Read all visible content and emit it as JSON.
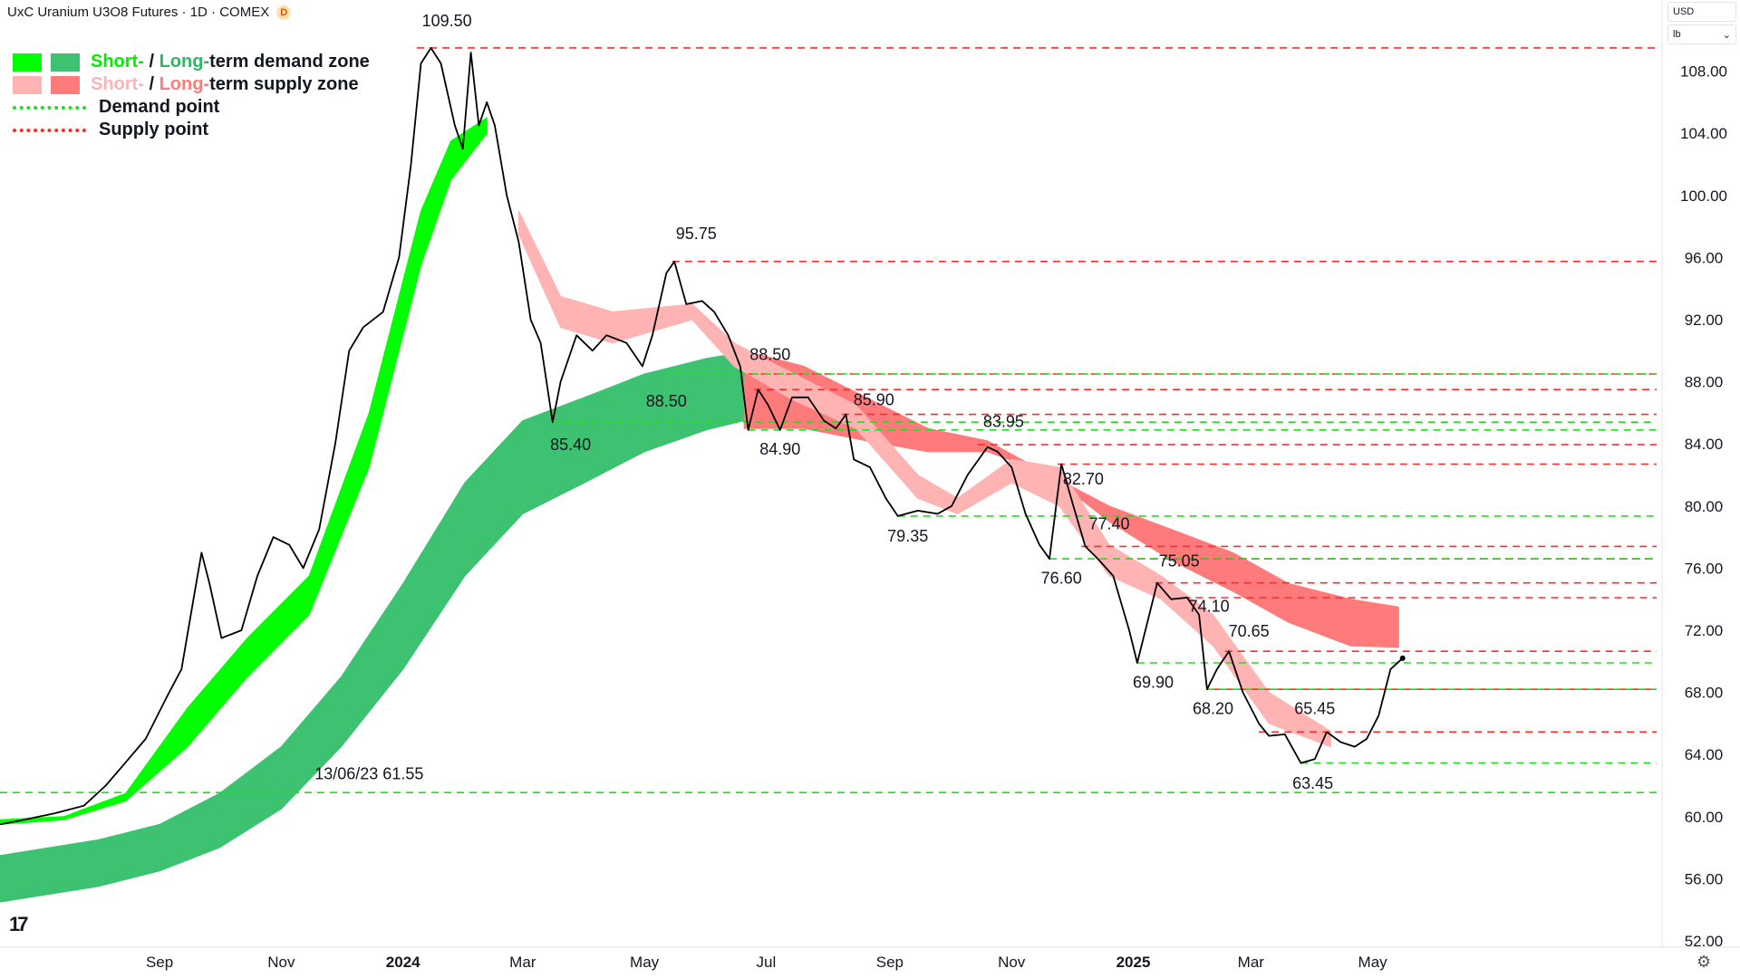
{
  "header": {
    "title": "UxC Uranium U3O8 Futures · 1D · COMEX",
    "badge": "D"
  },
  "price_scale": {
    "currency": "USD",
    "unit": "lb"
  },
  "legend": {
    "demand_zone": {
      "short": "Short-",
      "sep": " / ",
      "long": "Long-",
      "rest": "term demand zone"
    },
    "supply_zone": {
      "short": "Short-",
      "sep": " / ",
      "long": "Long-",
      "rest": "term supply zone"
    },
    "demand_point": "Demand point",
    "supply_point": "Supply point"
  },
  "colors": {
    "price_line": "#000000",
    "short_demand": "#00ff00",
    "long_demand": "#3cc270",
    "short_supply": "#ffb3b3",
    "long_supply": "#ff7b7b",
    "transition": "#f28500",
    "demand_point": "#22dd22",
    "supply_point": "#ff2a2a"
  },
  "chart_data": {
    "type": "line",
    "title": "UxC Uranium U3O8 Futures · 1D · COMEX",
    "y_range": [
      52,
      110
    ],
    "y_ticks": [
      {
        "value": 108,
        "label": "108.00"
      },
      {
        "value": 104,
        "label": "104.00"
      },
      {
        "value": 100,
        "label": "100.00"
      },
      {
        "value": 96,
        "label": "96.00"
      },
      {
        "value": 92,
        "label": "92.00"
      },
      {
        "value": 88,
        "label": "88.00"
      },
      {
        "value": 84,
        "label": "84.00"
      },
      {
        "value": 80,
        "label": "80.00"
      },
      {
        "value": 76,
        "label": "76.00"
      },
      {
        "value": 72,
        "label": "72.00"
      },
      {
        "value": 68,
        "label": "68.00"
      },
      {
        "value": 64,
        "label": "64.00"
      },
      {
        "value": 60,
        "label": "60.00"
      },
      {
        "value": 56,
        "label": "56.00"
      },
      {
        "value": 52,
        "label": "52.00"
      }
    ],
    "x_ticks": [
      {
        "date": "2023-09-01",
        "label": "Sep",
        "bold": false
      },
      {
        "date": "2023-11-01",
        "label": "Nov",
        "bold": false
      },
      {
        "date": "2024-01-01",
        "label": "2024",
        "bold": true
      },
      {
        "date": "2024-03-01",
        "label": "Mar",
        "bold": false
      },
      {
        "date": "2024-05-01",
        "label": "May",
        "bold": false
      },
      {
        "date": "2024-07-01",
        "label": "Jul",
        "bold": false
      },
      {
        "date": "2024-09-01",
        "label": "Sep",
        "bold": false
      },
      {
        "date": "2024-11-01",
        "label": "Nov",
        "bold": false
      },
      {
        "date": "2025-01-01",
        "label": "2025",
        "bold": true
      },
      {
        "date": "2025-03-01",
        "label": "Mar",
        "bold": false
      },
      {
        "date": "2025-05-01",
        "label": "May",
        "bold": false
      }
    ],
    "price": [
      [
        "2023-06-13",
        59.5
      ],
      [
        "2023-06-25",
        59.8
      ],
      [
        "2023-07-10",
        60.2
      ],
      [
        "2023-07-25",
        60.7
      ],
      [
        "2023-08-05",
        62.0
      ],
      [
        "2023-08-15",
        63.5
      ],
      [
        "2023-08-25",
        65.0
      ],
      [
        "2023-09-05",
        67.8
      ],
      [
        "2023-09-12",
        69.5
      ],
      [
        "2023-09-18",
        74.0
      ],
      [
        "2023-09-22",
        77.0
      ],
      [
        "2023-09-26",
        75.0
      ],
      [
        "2023-10-02",
        71.5
      ],
      [
        "2023-10-12",
        72.0
      ],
      [
        "2023-10-20",
        75.5
      ],
      [
        "2023-10-28",
        78.0
      ],
      [
        "2023-11-05",
        77.5
      ],
      [
        "2023-11-12",
        76.0
      ],
      [
        "2023-11-20",
        78.5
      ],
      [
        "2023-11-28",
        84.0
      ],
      [
        "2023-12-05",
        90.0
      ],
      [
        "2023-12-12",
        91.5
      ],
      [
        "2023-12-22",
        92.5
      ],
      [
        "2023-12-30",
        96.0
      ],
      [
        "2024-01-05",
        102.0
      ],
      [
        "2024-01-10",
        108.5
      ],
      [
        "2024-01-15",
        109.5
      ],
      [
        "2024-01-20",
        108.5
      ],
      [
        "2024-01-27",
        104.5
      ],
      [
        "2024-01-31",
        103.0
      ],
      [
        "2024-02-04",
        109.2
      ],
      [
        "2024-02-08",
        104.5
      ],
      [
        "2024-02-12",
        106.0
      ],
      [
        "2024-02-16",
        104.5
      ],
      [
        "2024-02-22",
        100.0
      ],
      [
        "2024-02-28",
        97.0
      ],
      [
        "2024-03-05",
        92.0
      ],
      [
        "2024-03-10",
        90.5
      ],
      [
        "2024-03-16",
        85.4
      ],
      [
        "2024-03-20",
        88.0
      ],
      [
        "2024-03-28",
        91.0
      ],
      [
        "2024-04-05",
        90.0
      ],
      [
        "2024-04-12",
        91.0
      ],
      [
        "2024-04-22",
        90.5
      ],
      [
        "2024-04-30",
        89.0
      ],
      [
        "2024-05-05",
        91.0
      ],
      [
        "2024-05-12",
        95.0
      ],
      [
        "2024-05-16",
        95.75
      ],
      [
        "2024-05-22",
        93.0
      ],
      [
        "2024-05-30",
        93.2
      ],
      [
        "2024-06-05",
        92.5
      ],
      [
        "2024-06-12",
        91.0
      ],
      [
        "2024-06-18",
        89.0
      ],
      [
        "2024-06-22",
        84.9
      ],
      [
        "2024-06-27",
        87.5
      ],
      [
        "2024-07-02",
        86.5
      ],
      [
        "2024-07-08",
        84.9
      ],
      [
        "2024-07-14",
        87.0
      ],
      [
        "2024-07-22",
        87.0
      ],
      [
        "2024-07-30",
        85.5
      ],
      [
        "2024-08-05",
        85.0
      ],
      [
        "2024-08-10",
        85.9
      ],
      [
        "2024-08-14",
        83.0
      ],
      [
        "2024-08-22",
        82.5
      ],
      [
        "2024-08-30",
        80.5
      ],
      [
        "2024-09-05",
        79.35
      ],
      [
        "2024-09-15",
        79.7
      ],
      [
        "2024-09-25",
        79.5
      ],
      [
        "2024-10-02",
        80.0
      ],
      [
        "2024-10-10",
        82.0
      ],
      [
        "2024-10-20",
        83.8
      ],
      [
        "2024-10-25",
        83.5
      ],
      [
        "2024-11-01",
        82.5
      ],
      [
        "2024-11-08",
        79.5
      ],
      [
        "2024-11-15",
        77.5
      ],
      [
        "2024-11-20",
        76.6
      ],
      [
        "2024-11-26",
        82.7
      ],
      [
        "2024-12-02",
        80.0
      ],
      [
        "2024-12-08",
        77.4
      ],
      [
        "2024-12-15",
        76.5
      ],
      [
        "2024-12-22",
        75.5
      ],
      [
        "2024-12-30",
        72.0
      ],
      [
        "2025-01-03",
        69.9
      ],
      [
        "2025-01-10",
        73.5
      ],
      [
        "2025-01-13",
        75.05
      ],
      [
        "2025-01-20",
        74.0
      ],
      [
        "2025-01-28",
        74.1
      ],
      [
        "2025-02-03",
        73.0
      ],
      [
        "2025-02-07",
        68.2
      ],
      [
        "2025-02-12",
        69.5
      ],
      [
        "2025-02-18",
        70.65
      ],
      [
        "2025-02-25",
        68.0
      ],
      [
        "2025-03-05",
        66.0
      ],
      [
        "2025-03-10",
        65.2
      ],
      [
        "2025-03-18",
        65.3
      ],
      [
        "2025-03-26",
        63.45
      ],
      [
        "2025-04-02",
        63.7
      ],
      [
        "2025-04-08",
        65.45
      ],
      [
        "2025-04-15",
        64.8
      ],
      [
        "2025-04-22",
        64.5
      ],
      [
        "2025-04-28",
        65.0
      ],
      [
        "2025-05-04",
        66.5
      ],
      [
        "2025-05-10",
        69.5
      ],
      [
        "2025-05-16",
        70.2
      ]
    ],
    "zones": {
      "short_demand": [
        [
          [
            "2023-06-13",
            59.8
          ],
          [
            "2023-07-15",
            60.0
          ],
          [
            "2023-08-15",
            61.5
          ],
          [
            "2023-09-15",
            67.0
          ],
          [
            "2023-10-15",
            71.5
          ],
          [
            "2023-11-15",
            75.5
          ],
          [
            "2023-12-15",
            86.0
          ],
          [
            "2024-01-10",
            99.0
          ],
          [
            "2024-01-25",
            103.5
          ],
          [
            "2024-02-12",
            105.0
          ]
        ],
        [
          [
            "2023-06-13",
            59.5
          ],
          [
            "2023-07-15",
            59.8
          ],
          [
            "2023-08-15",
            61.0
          ],
          [
            "2023-09-15",
            64.5
          ],
          [
            "2023-10-15",
            69.0
          ],
          [
            "2023-11-15",
            73.0
          ],
          [
            "2023-12-15",
            82.5
          ],
          [
            "2024-01-10",
            95.5
          ],
          [
            "2024-01-25",
            101.0
          ],
          [
            "2024-02-12",
            104.0
          ]
        ]
      ],
      "long_demand": [
        [
          [
            "2023-06-13",
            57.5
          ],
          [
            "2023-08-01",
            58.5
          ],
          [
            "2023-09-01",
            59.5
          ],
          [
            "2023-10-01",
            61.5
          ],
          [
            "2023-11-01",
            64.5
          ],
          [
            "2023-12-01",
            69.0
          ],
          [
            "2024-01-01",
            75.0
          ],
          [
            "2024-02-01",
            81.5
          ],
          [
            "2024-03-01",
            85.5
          ],
          [
            "2024-04-01",
            87.0
          ],
          [
            "2024-05-01",
            88.5
          ],
          [
            "2024-06-01",
            89.5
          ],
          [
            "2024-06-20",
            89.9
          ]
        ],
        [
          [
            "2023-06-13",
            54.5
          ],
          [
            "2023-08-01",
            55.5
          ],
          [
            "2023-09-01",
            56.5
          ],
          [
            "2023-10-01",
            58.0
          ],
          [
            "2023-11-01",
            60.5
          ],
          [
            "2023-12-01",
            64.5
          ],
          [
            "2024-01-01",
            69.5
          ],
          [
            "2024-02-01",
            75.5
          ],
          [
            "2024-03-01",
            79.5
          ],
          [
            "2024-04-01",
            81.5
          ],
          [
            "2024-05-01",
            83.5
          ],
          [
            "2024-06-01",
            84.9
          ],
          [
            "2024-06-20",
            85.5
          ]
        ]
      ],
      "short_supply": [
        [
          [
            "2024-02-28",
            99.0
          ],
          [
            "2024-03-20",
            93.5
          ],
          [
            "2024-04-15",
            92.5
          ],
          [
            "2024-05-25",
            93.0
          ],
          [
            "2024-06-15",
            90.5
          ],
          [
            "2024-07-15",
            88.5
          ],
          [
            "2024-08-15",
            86.5
          ],
          [
            "2024-09-15",
            82.0
          ],
          [
            "2024-10-05",
            80.5
          ],
          [
            "2024-11-01",
            83.0
          ],
          [
            "2024-11-25",
            82.5
          ],
          [
            "2024-12-20",
            77.5
          ],
          [
            "2025-01-15",
            75.5
          ],
          [
            "2025-02-10",
            73.0
          ],
          [
            "2025-03-10",
            68.0
          ],
          [
            "2025-04-10",
            65.5
          ]
        ],
        [
          [
            "2024-02-28",
            97.5
          ],
          [
            "2024-03-20",
            91.5
          ],
          [
            "2024-04-15",
            90.5
          ],
          [
            "2024-05-25",
            92.0
          ],
          [
            "2024-06-15",
            89.0
          ],
          [
            "2024-07-15",
            86.8
          ],
          [
            "2024-08-15",
            85.0
          ],
          [
            "2024-09-15",
            80.5
          ],
          [
            "2024-10-05",
            79.5
          ],
          [
            "2024-11-01",
            81.5
          ],
          [
            "2024-11-25",
            80.0
          ],
          [
            "2024-12-20",
            75.5
          ],
          [
            "2025-01-15",
            74.0
          ],
          [
            "2025-02-10",
            71.0
          ],
          [
            "2025-03-10",
            66.0
          ],
          [
            "2025-04-10",
            64.5
          ]
        ]
      ],
      "long_supply": [
        [
          [
            "2024-06-20",
            90.0
          ],
          [
            "2024-07-20",
            89.0
          ],
          [
            "2024-08-20",
            87.0
          ],
          [
            "2024-09-20",
            85.0
          ],
          [
            "2024-10-20",
            84.2
          ],
          [
            "2024-11-20",
            82.0
          ],
          [
            "2024-12-20",
            80.0
          ],
          [
            "2025-01-20",
            78.5
          ],
          [
            "2025-02-20",
            77.0
          ],
          [
            "2025-03-20",
            75.0
          ],
          [
            "2025-04-20",
            74.0
          ],
          [
            "2025-05-14",
            73.5
          ]
        ],
        [
          [
            "2024-06-20",
            85.0
          ],
          [
            "2024-07-20",
            85.0
          ],
          [
            "2024-08-20",
            84.2
          ],
          [
            "2024-09-20",
            83.5
          ],
          [
            "2024-10-20",
            83.5
          ],
          [
            "2024-11-20",
            82.0
          ],
          [
            "2024-12-20",
            79.0
          ],
          [
            "2025-01-20",
            76.5
          ],
          [
            "2025-02-20",
            74.5
          ],
          [
            "2025-03-20",
            72.5
          ],
          [
            "2025-04-20",
            71.0
          ],
          [
            "2025-05-14",
            70.9
          ]
        ]
      ]
    },
    "supply_levels": [
      {
        "value": 109.5,
        "from": "2024-01-08",
        "label": "109.50",
        "lx": "2024-01-23",
        "ly": 110.9
      },
      {
        "value": 95.75,
        "from": "2024-05-15",
        "label": "95.75",
        "lx": "2024-05-27",
        "ly": 97.2
      },
      {
        "value": 88.5,
        "from": "2024-06-22",
        "label": "88.50",
        "lx": "2024-07-03",
        "ly": 89.4
      },
      {
        "value": 87.5,
        "from": "2024-06-25",
        "label": "",
        "lx": "",
        "ly": 0
      },
      {
        "value": 85.9,
        "from": "2024-08-08",
        "label": "85.90",
        "lx": "2024-08-24",
        "ly": 86.5
      },
      {
        "value": 83.95,
        "from": "2024-10-15",
        "label": "83.95",
        "lx": "2024-10-28",
        "ly": 85.1
      },
      {
        "value": 82.7,
        "from": "2024-11-24",
        "label": "82.70",
        "lx": "2024-12-07",
        "ly": 81.4
      },
      {
        "value": 77.4,
        "from": "2024-12-06",
        "label": "77.40",
        "lx": "2024-12-20",
        "ly": 78.5
      },
      {
        "value": 76.6,
        "from": "2025-01-03",
        "label": "",
        "lx": "",
        "ly": 0
      },
      {
        "value": 75.05,
        "from": "2025-01-12",
        "label": "75.05",
        "lx": "2025-01-24",
        "ly": 76.1
      },
      {
        "value": 74.1,
        "from": "2025-01-26",
        "label": "74.10",
        "lx": "2025-02-08",
        "ly": 73.2
      },
      {
        "value": 70.65,
        "from": "2025-02-16",
        "label": "70.65",
        "lx": "2025-02-28",
        "ly": 71.6
      },
      {
        "value": 68.2,
        "from": "2025-02-10",
        "label": "",
        "lx": "",
        "ly": 0
      },
      {
        "value": 65.45,
        "from": "2025-03-05",
        "label": "65.45",
        "lx": "2025-04-02",
        "ly": 66.6
      }
    ],
    "demand_levels": [
      {
        "value": 61.55,
        "from": "2023-06-13",
        "label": "13/06/23 61.55",
        "lx": "2023-12-15",
        "ly": 62.4
      },
      {
        "value": 85.4,
        "from": "2024-03-16",
        "label": "85.40",
        "lx": "2024-03-25",
        "ly": 83.6
      },
      {
        "value": 84.9,
        "from": "2024-06-22",
        "label": "84.90",
        "lx": "2024-07-08",
        "ly": 83.3
      },
      {
        "value": 79.35,
        "from": "2024-09-05",
        "label": "79.35",
        "lx": "2024-09-10",
        "ly": 77.7
      },
      {
        "value": 76.6,
        "from": "2024-11-20",
        "label": "76.60",
        "lx": "2024-11-26",
        "ly": 75.0
      },
      {
        "value": 69.9,
        "from": "2025-01-03",
        "label": "69.90",
        "lx": "2025-01-11",
        "ly": 68.3
      },
      {
        "value": 68.2,
        "from": "2025-02-07",
        "label": "68.20",
        "lx": "2025-02-10",
        "ly": 66.6
      },
      {
        "value": 63.45,
        "from": "2025-03-26",
        "label": "63.45",
        "lx": "2025-04-01",
        "ly": 61.8
      },
      {
        "value": 88.5,
        "from": "2024-05-10",
        "label": "88.50",
        "lx": "2024-05-12",
        "ly": 86.4
      }
    ]
  }
}
